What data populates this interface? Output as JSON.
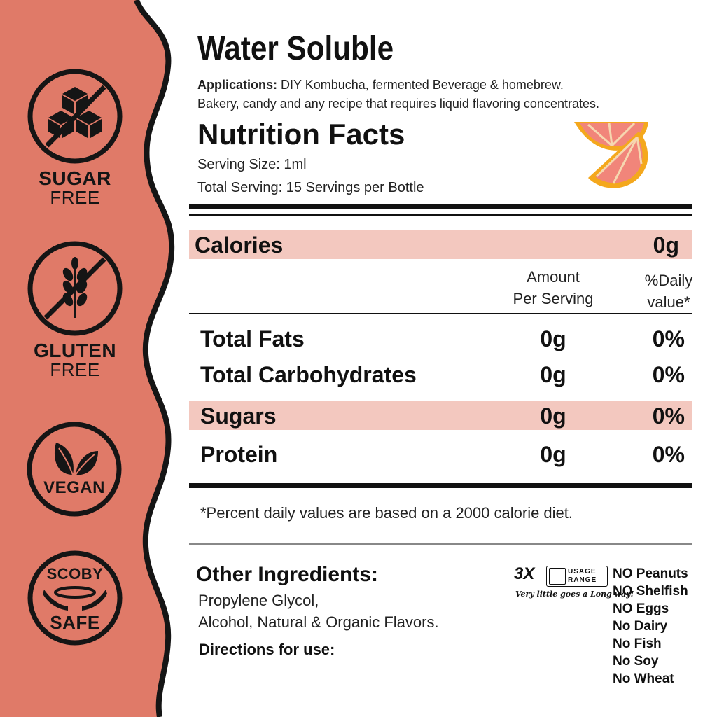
{
  "colors": {
    "sidebar": "#e07a68",
    "highlight": "#f3c8bf",
    "ink": "#151515"
  },
  "badges": [
    {
      "icon": "sugar-cubes-icon",
      "line1": "SUGAR",
      "line2": "FREE"
    },
    {
      "icon": "wheat-icon",
      "line1": "GLUTEN",
      "line2": "FREE"
    },
    {
      "icon": "leaves-icon",
      "line1": "VEGAN"
    },
    {
      "icon": "scoby-hands-icon",
      "line1": "SCOBY",
      "line2": "SAFE"
    }
  ],
  "title": "Water Soluble",
  "applications": {
    "label": "Applications:",
    "text1": " DIY Kombucha, fermented Beverage & homebrew.",
    "text2": "Bakery, candy and any recipe that requires liquid flavoring concentrates."
  },
  "nutrition": {
    "title": "Nutrition Facts",
    "serving_size": "Serving Size: 1ml",
    "total_serving": "Total Serving: 15 Servings per Bottle",
    "calories": {
      "label": "Calories",
      "value": "0g"
    },
    "col_amount_1": "Amount",
    "col_amount_2": "Per Serving",
    "col_daily_1": "%Daily",
    "col_daily_2": "value*",
    "rows": [
      {
        "label": "Total Fats",
        "amount": "0g",
        "percent": "0%"
      },
      {
        "label": "Total Carbohydrates",
        "amount": "0g",
        "percent": "0%"
      },
      {
        "label": "Sugars",
        "amount": "0g",
        "percent": "0%"
      },
      {
        "label": "Protein",
        "amount": "0g",
        "percent": "0%"
      }
    ],
    "footnote": "*Percent daily values are based on a 2000 calorie diet."
  },
  "other_ingredients": {
    "title": "Other Ingredients:",
    "line1": "Propylene Glycol,",
    "line2": "Alcohol, Natural & Organic Flavors.",
    "directions": "Directions for use:"
  },
  "usage": {
    "multiplier": "3X",
    "box_line1": "USAGE",
    "box_line2": "RANGE",
    "tagline": "Very little goes a Long way!"
  },
  "allergens": [
    "NO Peanuts",
    "NO Shelfish",
    "NO Eggs",
    "No Dairy",
    "No Fish",
    "No Soy",
    "No Wheat"
  ]
}
